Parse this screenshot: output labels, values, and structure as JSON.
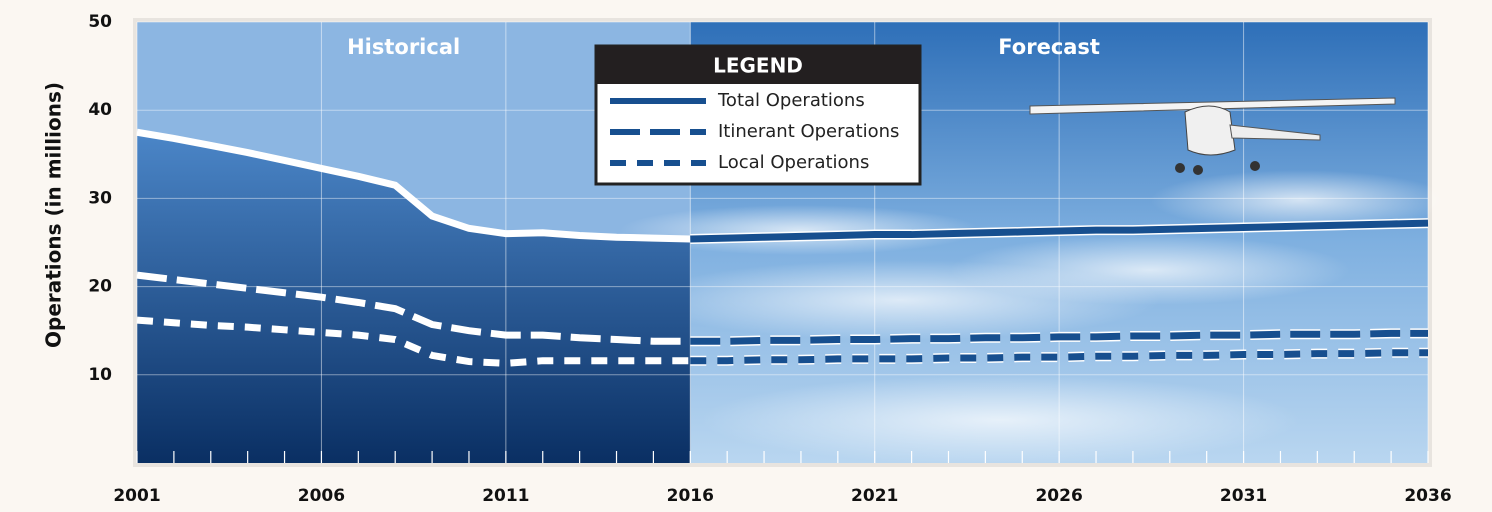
{
  "chart_data": {
    "type": "line",
    "ylabel": "Operations (in millions)",
    "x": [
      2001,
      2002,
      2003,
      2004,
      2005,
      2006,
      2007,
      2008,
      2009,
      2010,
      2011,
      2012,
      2013,
      2014,
      2015,
      2016,
      2017,
      2018,
      2019,
      2020,
      2021,
      2022,
      2023,
      2024,
      2025,
      2026,
      2027,
      2028,
      2029,
      2030,
      2031,
      2032,
      2033,
      2034,
      2035,
      2036
    ],
    "xlim": [
      2001,
      2036
    ],
    "xticks": [
      2001,
      2006,
      2011,
      2016,
      2021,
      2026,
      2031,
      2036
    ],
    "ylim": [
      0,
      50
    ],
    "yticks": [
      10,
      20,
      30,
      40,
      50
    ],
    "grid": true,
    "legend": "top",
    "legend_title": "LEGEND",
    "regions": [
      {
        "label": "Historical",
        "from": 2001,
        "to": 2016,
        "line_color": "#ffffff"
      },
      {
        "label": "Forecast",
        "from": 2016,
        "to": 2036
      }
    ],
    "series": [
      {
        "name": "Total Operations",
        "color": "#174f8f",
        "dash": "solid",
        "values": [
          37.5,
          36.8,
          36.0,
          35.2,
          34.3,
          33.4,
          32.5,
          31.5,
          28.0,
          26.6,
          26.0,
          26.1,
          25.8,
          25.6,
          25.5,
          25.4,
          25.5,
          25.6,
          25.7,
          25.8,
          25.9,
          25.9,
          26.0,
          26.1,
          26.2,
          26.3,
          26.4,
          26.4,
          26.5,
          26.6,
          26.7,
          26.8,
          26.9,
          27.0,
          27.1,
          27.2
        ]
      },
      {
        "name": "Itinerant Operations",
        "color": "#174f8f",
        "dash": "long",
        "values": [
          21.3,
          20.8,
          20.3,
          19.8,
          19.3,
          18.8,
          18.2,
          17.5,
          15.7,
          15.0,
          14.5,
          14.5,
          14.2,
          14.0,
          13.8,
          13.8,
          13.8,
          13.9,
          13.9,
          14.0,
          14.0,
          14.1,
          14.1,
          14.2,
          14.2,
          14.3,
          14.3,
          14.4,
          14.4,
          14.5,
          14.5,
          14.6,
          14.6,
          14.6,
          14.7,
          14.7
        ]
      },
      {
        "name": "Local Operations",
        "color": "#174f8f",
        "dash": "short",
        "values": [
          16.2,
          15.9,
          15.6,
          15.4,
          15.1,
          14.8,
          14.5,
          14.0,
          12.2,
          11.5,
          11.3,
          11.6,
          11.6,
          11.6,
          11.6,
          11.6,
          11.6,
          11.7,
          11.7,
          11.8,
          11.8,
          11.8,
          11.9,
          11.9,
          12.0,
          12.0,
          12.1,
          12.1,
          12.2,
          12.2,
          12.3,
          12.3,
          12.4,
          12.4,
          12.5,
          12.5
        ]
      }
    ]
  }
}
